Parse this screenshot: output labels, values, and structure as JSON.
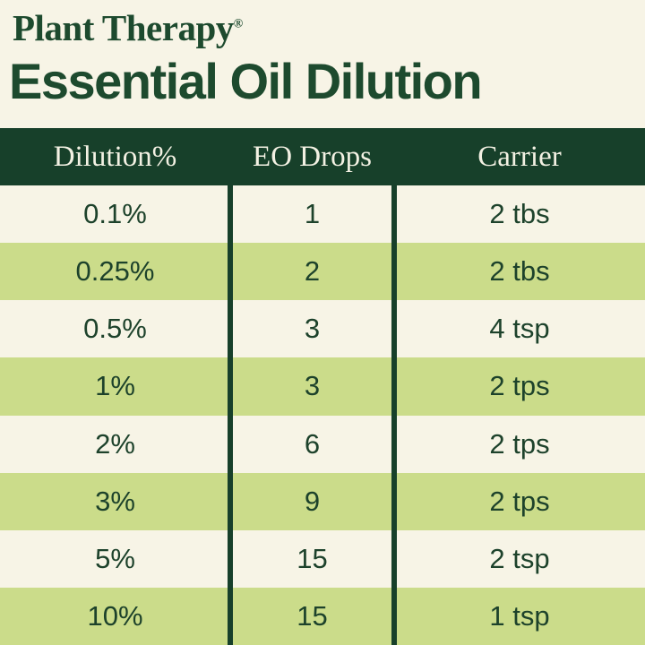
{
  "brand": {
    "name": "Plant Therapy",
    "registered_mark": "®"
  },
  "page_title": "Essential Oil Dilution",
  "chart_data": {
    "type": "table",
    "title": "Essential Oil Dilution",
    "columns": [
      "Dilution%",
      "EO Drops",
      "Carrier"
    ],
    "rows": [
      [
        "0.1%",
        "1",
        "2 tbs"
      ],
      [
        "0.25%",
        "2",
        "2 tbs"
      ],
      [
        "0.5%",
        "3",
        "4 tsp"
      ],
      [
        "1%",
        "3",
        "2 tps"
      ],
      [
        "2%",
        "6",
        "2 tps"
      ],
      [
        "3%",
        "9",
        "2 tps"
      ],
      [
        "5%",
        "15",
        "2 tsp"
      ],
      [
        "10%",
        "15",
        "1 tsp"
      ]
    ],
    "layout": {
      "striped_rows": true,
      "stripe_pattern": "even rows light green, odd rows cream",
      "column_dividers": "dark green vertical rules between columns in body"
    }
  },
  "colors": {
    "background_cream": "#f7f4e6",
    "row_stripe_green": "#cbdc8a",
    "header_bar_green": "#17402a",
    "header_text_cream": "#f3f1e3",
    "brand_text_green": "#1d4a2e",
    "body_text_green": "#1d422b"
  }
}
